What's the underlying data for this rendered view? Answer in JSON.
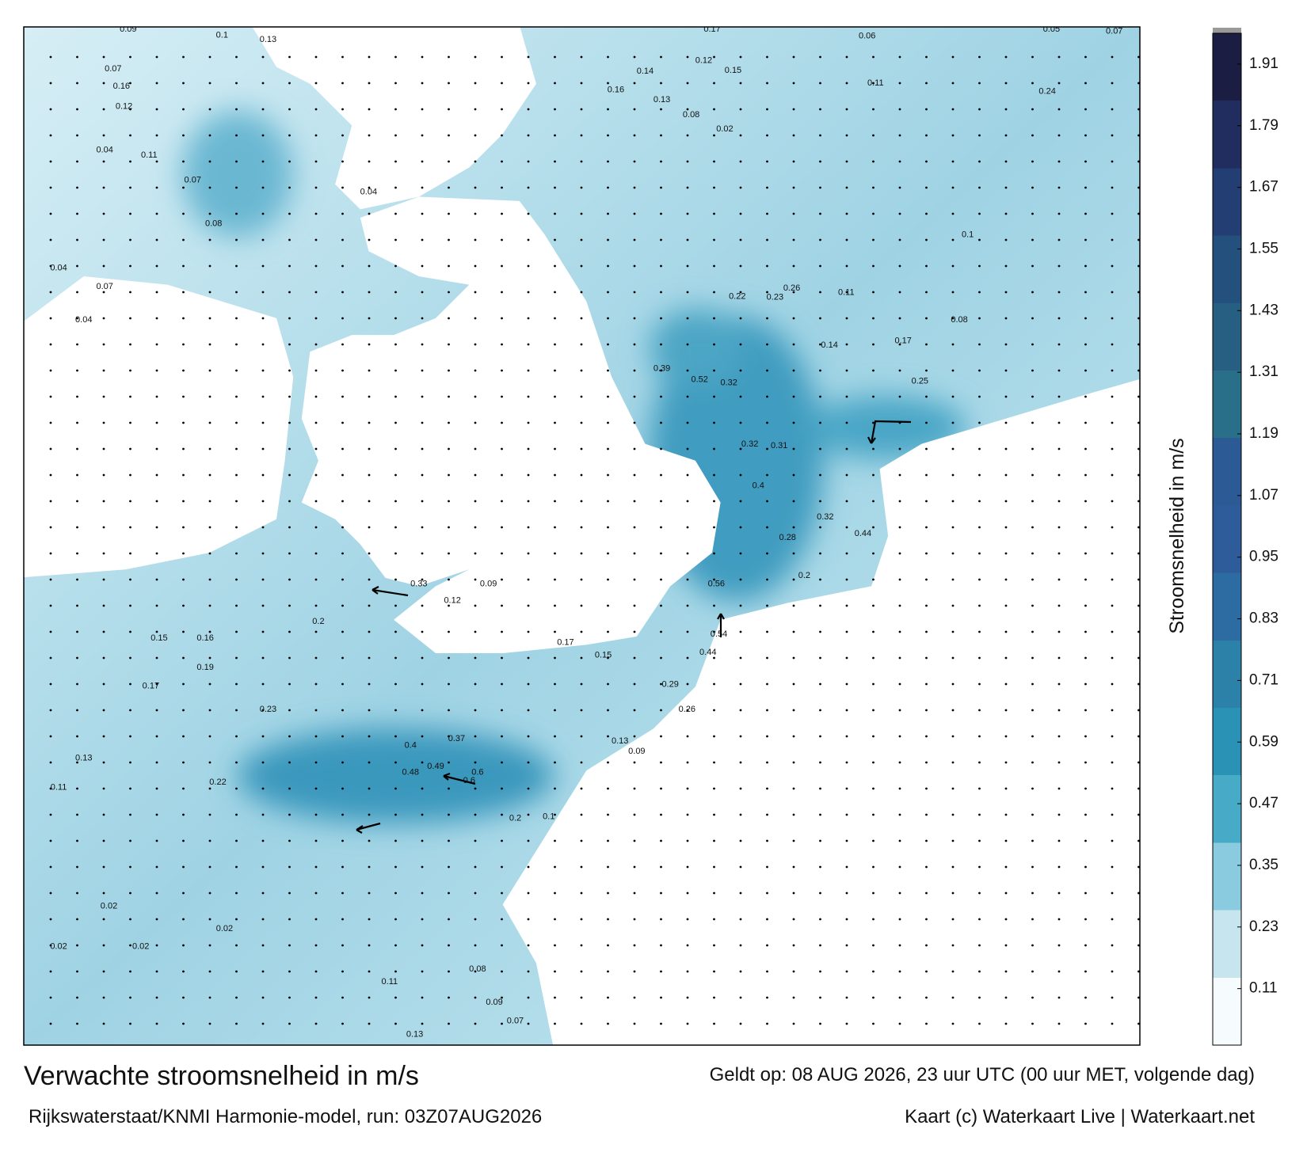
{
  "map": {
    "colorbar": {
      "label": "Stroomsnelheid in m/s",
      "lim": [
        0,
        1.97
      ],
      "ticks": [
        0.11,
        0.23,
        0.35,
        0.47,
        0.59,
        0.71,
        0.83,
        0.95,
        1.07,
        1.19,
        1.31,
        1.43,
        1.55,
        1.67,
        1.79,
        1.91
      ],
      "colors": [
        "#f6fbfd",
        "#c6e5ef",
        "#8acbdf",
        "#47abc8",
        "#2a92b4",
        "#2c81a8",
        "#2d6ca2",
        "#2e5c9b",
        "#2c5a94",
        "#2a6f8a",
        "#275f82",
        "#23507c",
        "#223e72",
        "#212c5f",
        "#1b1d42"
      ]
    },
    "current_labels": [
      0.09,
      0.1,
      0.13,
      0.07,
      0.16,
      0.12,
      0.04,
      0.11,
      0.07,
      0.04,
      0.07,
      0.04,
      0.08,
      0.04,
      0.09,
      0.33,
      0.12,
      0.2,
      0.15,
      0.16,
      0.19,
      0.17,
      0.23,
      0.4,
      0.37,
      0.49,
      0.6,
      0.48,
      0.22,
      0.13,
      0.11,
      0.02,
      0.02,
      0.02,
      0.02,
      0.13,
      0.07,
      0.09,
      0.17,
      0.06,
      0.05,
      0.07,
      0.14,
      0.12,
      0.15,
      0.16,
      0.13,
      0.08,
      0.02,
      0.11,
      0.24,
      0.1,
      0.22,
      0.23,
      0.26,
      0.11,
      0.08,
      0.17,
      0.14,
      0.25,
      0.39,
      0.52,
      0.32,
      0.32,
      0.31,
      0.4,
      0.28,
      0.32,
      0.44,
      0.2,
      0.56,
      0.54,
      0.44,
      0.29,
      0.26,
      0.13,
      0.09,
      0.17,
      0.15,
      0.6,
      0.2,
      0.1,
      0.11,
      0.08
    ]
  },
  "footer": {
    "title": "Verwachte stroomsnelheid in m/s",
    "valid": "Geldt op: 08 AUG 2026, 23 uur UTC (00 uur MET, volgende dag)",
    "source": "Rijkswaterstaat/KNMI Harmonie-model, run: 03Z07AUG2026",
    "credit": "Kaart (c) Waterkaart Live | Waterkaart.net"
  }
}
